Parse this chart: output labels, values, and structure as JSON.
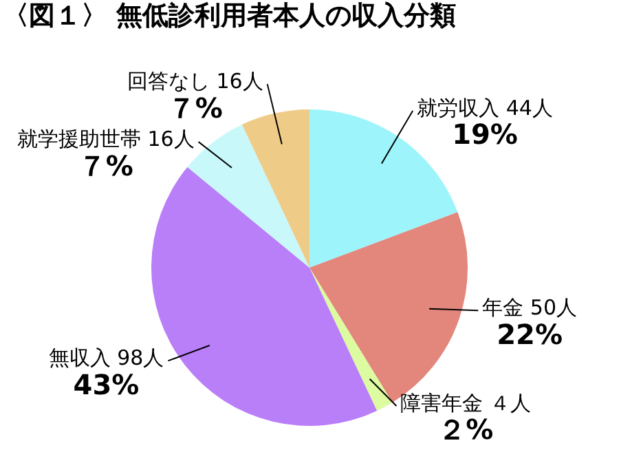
{
  "chart_data": {
    "type": "pie",
    "title": "〈図１〉 無低診利用者本人の収入分類",
    "categories": [
      "就労収入",
      "年金",
      "障害年金",
      "無収入",
      "就学援助世帯",
      "回答なし"
    ],
    "values": [
      44,
      50,
      4,
      98,
      16,
      16
    ],
    "value_labels": [
      "44人",
      "50人",
      "４人",
      "98人",
      "16人",
      "16人"
    ],
    "annotations": [
      "19%",
      "22%",
      "２%",
      "43%",
      "７%",
      "７%"
    ],
    "colors": [
      "#9df5fb",
      "#e3877d",
      "#ddfba0",
      "#b97ff8",
      "#c9f8fb",
      "#efcb88"
    ],
    "legend": false
  }
}
